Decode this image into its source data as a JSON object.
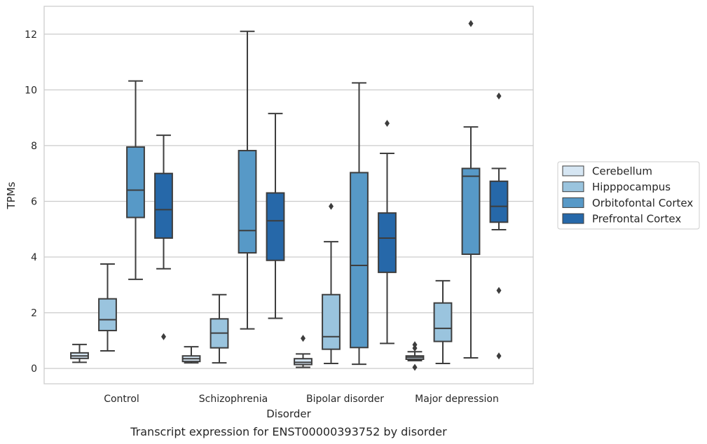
{
  "chart_data": {
    "type": "box",
    "xlabel": "Disorder",
    "ylabel": "TPMs",
    "caption": "Transcript expression for ENST00000393752 by disorder",
    "ylim": [
      -0.55,
      13
    ],
    "yticks": [
      0,
      2,
      4,
      6,
      8,
      10,
      12
    ],
    "grid": "horizontal",
    "legend_position": "right",
    "categories": [
      "Control",
      "Schizophrenia",
      "Bipolar disorder",
      "Major depression"
    ],
    "series": [
      {
        "name": "Cerebellum",
        "color": "#d6e6f3",
        "boxes": [
          {
            "whislo": 0.22,
            "q1": 0.36,
            "med": 0.45,
            "q3": 0.56,
            "whishi": 0.86,
            "fliers": []
          },
          {
            "whislo": 0.2,
            "q1": 0.25,
            "med": 0.35,
            "q3": 0.45,
            "whishi": 0.78,
            "fliers": []
          },
          {
            "whislo": 0.04,
            "q1": 0.14,
            "med": 0.22,
            "q3": 0.35,
            "whishi": 0.52,
            "fliers": [
              1.08
            ]
          },
          {
            "whislo": 0.28,
            "q1": 0.33,
            "med": 0.4,
            "q3": 0.45,
            "whishi": 0.6,
            "fliers": [
              0.85,
              0.73,
              0.04
            ]
          }
        ]
      },
      {
        "name": "Hipppocampus",
        "color": "#9ac4de",
        "boxes": [
          {
            "whislo": 0.63,
            "q1": 1.36,
            "med": 1.75,
            "q3": 2.5,
            "whishi": 3.75,
            "fliers": []
          },
          {
            "whislo": 0.2,
            "q1": 0.74,
            "med": 1.27,
            "q3": 1.78,
            "whishi": 2.65,
            "fliers": []
          },
          {
            "whislo": 0.18,
            "q1": 0.69,
            "med": 1.14,
            "q3": 2.65,
            "whishi": 4.55,
            "fliers": [
              5.82
            ]
          },
          {
            "whislo": 0.18,
            "q1": 0.97,
            "med": 1.44,
            "q3": 2.35,
            "whishi": 3.15,
            "fliers": []
          }
        ]
      },
      {
        "name": "Orbitofontal Cortex",
        "color": "#5799c7",
        "boxes": [
          {
            "whislo": 3.2,
            "q1": 5.42,
            "med": 6.4,
            "q3": 7.95,
            "whishi": 10.32,
            "fliers": []
          },
          {
            "whislo": 1.42,
            "q1": 4.15,
            "med": 4.95,
            "q3": 7.82,
            "whishi": 12.1,
            "fliers": []
          },
          {
            "whislo": 0.15,
            "q1": 0.75,
            "med": 3.7,
            "q3": 7.03,
            "whishi": 10.25,
            "fliers": []
          },
          {
            "whislo": 0.38,
            "q1": 4.1,
            "med": 6.9,
            "q3": 7.18,
            "whishi": 8.67,
            "fliers": [
              12.38
            ]
          }
        ]
      },
      {
        "name": "Prefrontal Cortex",
        "color": "#2668a9",
        "boxes": [
          {
            "whislo": 3.58,
            "q1": 4.68,
            "med": 5.7,
            "q3": 7.0,
            "whishi": 8.37,
            "fliers": [
              1.14
            ]
          },
          {
            "whislo": 1.8,
            "q1": 3.88,
            "med": 5.3,
            "q3": 6.3,
            "whishi": 9.15,
            "fliers": []
          },
          {
            "whislo": 0.9,
            "q1": 3.45,
            "med": 4.68,
            "q3": 5.58,
            "whishi": 7.72,
            "fliers": [
              8.8
            ]
          },
          {
            "whislo": 4.98,
            "q1": 5.25,
            "med": 5.82,
            "q3": 6.72,
            "whishi": 7.18,
            "fliers": [
              9.78,
              2.8,
              0.45
            ]
          }
        ]
      }
    ]
  }
}
